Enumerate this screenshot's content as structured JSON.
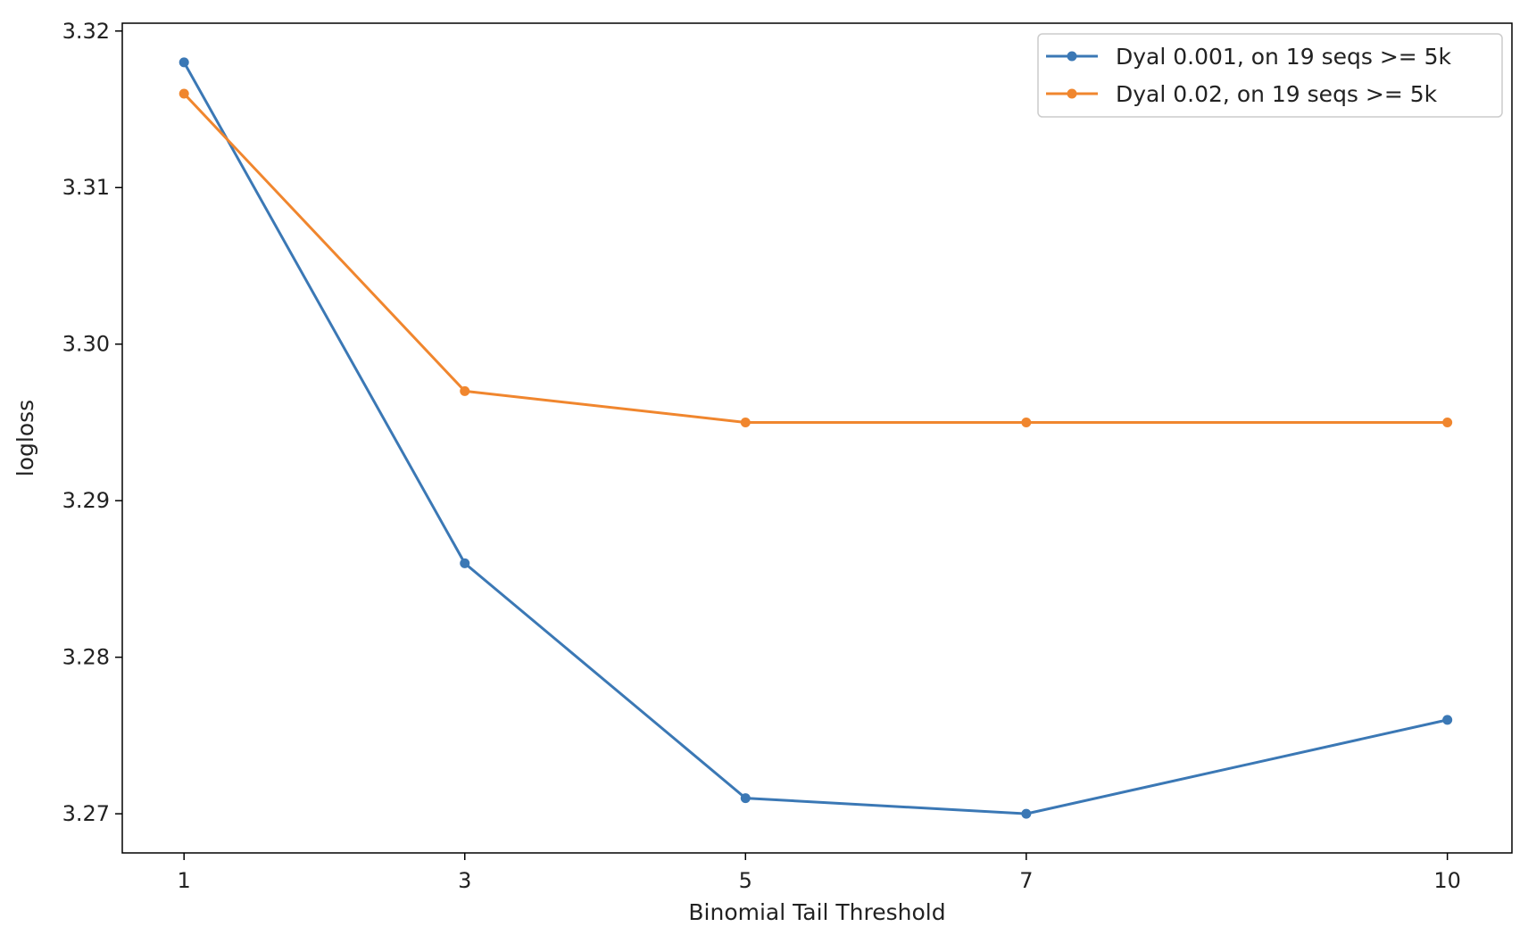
{
  "chart_data": {
    "type": "line",
    "title": "",
    "xlabel": "Binomial Tail Threshold",
    "ylabel": "logloss",
    "x": [
      1,
      3,
      5,
      7,
      10
    ],
    "xticks": [
      1,
      3,
      5,
      7,
      10
    ],
    "xtick_labels": [
      "1",
      "3",
      "5",
      "7",
      "10"
    ],
    "xlim": [
      0.56,
      10.46
    ],
    "ylim": [
      3.2675,
      3.3205
    ],
    "yticks": [
      3.27,
      3.28,
      3.29,
      3.3,
      3.31,
      3.32
    ],
    "ytick_labels": [
      "3.27",
      "3.28",
      "3.29",
      "3.30",
      "3.31",
      "3.32"
    ],
    "grid": false,
    "legend_position": "top-right",
    "series": [
      {
        "name": "Dyal 0.001, on 19 seqs >= 5k",
        "color": "#3b78b5",
        "marker": "dot",
        "values": [
          3.318,
          3.286,
          3.271,
          3.27,
          3.276
        ]
      },
      {
        "name": "Dyal 0.02, on 19 seqs >= 5k",
        "color": "#f0862e",
        "marker": "dot",
        "values": [
          3.316,
          3.297,
          3.295,
          3.295,
          3.295
        ]
      }
    ]
  }
}
